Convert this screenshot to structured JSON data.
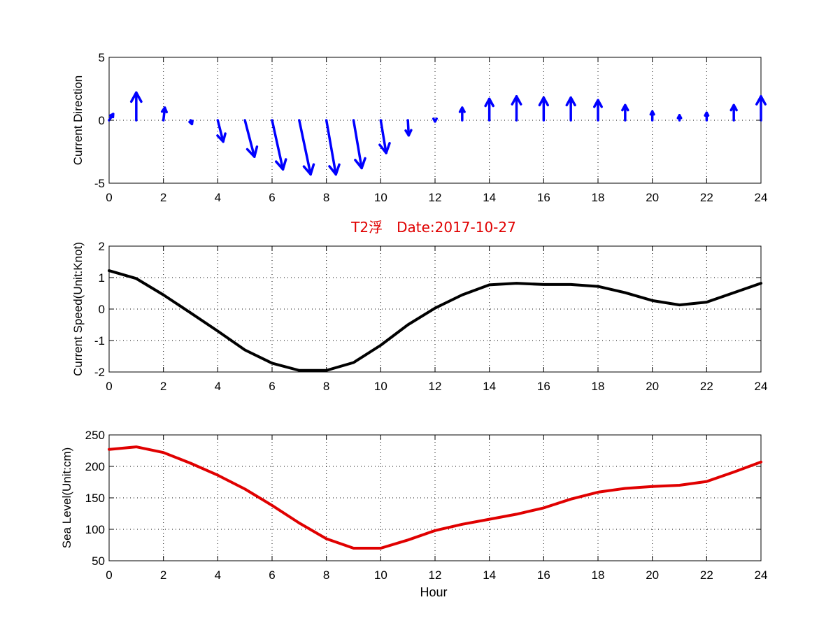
{
  "title": "T2浮　Date:2017-10-27",
  "title_color": "#e00000",
  "chart_data": [
    {
      "type": "quiver",
      "ylabel": "Current Direction",
      "xlabel": "",
      "xlim": [
        0,
        24
      ],
      "ylim": [
        -5,
        5
      ],
      "xticks": [
        "0",
        "2",
        "4",
        "6",
        "8",
        "10",
        "12",
        "14",
        "16",
        "18",
        "20",
        "22",
        "24"
      ],
      "yticks": [
        "5",
        "0",
        "-5"
      ],
      "grid": true,
      "color": "#0000ff",
      "x": [
        0,
        1,
        2,
        3,
        4,
        5,
        6,
        7,
        8,
        9,
        10,
        11,
        12,
        13,
        14,
        15,
        16,
        17,
        18,
        19,
        20,
        21,
        22,
        23,
        24
      ],
      "u": [
        0.15,
        0,
        0.05,
        0.05,
        0.2,
        0.35,
        0.4,
        0.42,
        0.35,
        0.3,
        0.2,
        0.03,
        0,
        0,
        0,
        0,
        0,
        0,
        0,
        0,
        0,
        0,
        0,
        0,
        0
      ],
      "v": [
        0.5,
        2.2,
        1.0,
        -0.3,
        -1.7,
        -2.9,
        -3.9,
        -4.3,
        -4.3,
        -3.8,
        -2.6,
        -1.2,
        -0.1,
        1.0,
        1.7,
        1.9,
        1.8,
        1.8,
        1.6,
        1.2,
        0.7,
        0.4,
        0.6,
        1.2,
        1.9
      ]
    },
    {
      "type": "line",
      "ylabel": "Current Speed(Unit:Knot)",
      "xlabel": "",
      "xlim": [
        0,
        24
      ],
      "ylim": [
        -2,
        2
      ],
      "xticks": [
        "0",
        "2",
        "4",
        "6",
        "8",
        "10",
        "12",
        "14",
        "16",
        "18",
        "20",
        "22",
        "24"
      ],
      "yticks": [
        "2",
        "1",
        "0",
        "-1",
        "-2"
      ],
      "grid": true,
      "color": "#000000",
      "x": [
        0,
        1,
        2,
        3,
        4,
        5,
        6,
        7,
        8,
        9,
        10,
        11,
        12,
        13,
        14,
        15,
        16,
        17,
        18,
        19,
        20,
        21,
        22,
        23,
        24
      ],
      "y": [
        1.22,
        0.97,
        0.45,
        -0.12,
        -0.7,
        -1.3,
        -1.72,
        -1.95,
        -1.95,
        -1.7,
        -1.15,
        -0.5,
        0.03,
        0.45,
        0.77,
        0.82,
        0.78,
        0.78,
        0.72,
        0.52,
        0.27,
        0.13,
        0.22,
        0.52,
        0.82
      ]
    },
    {
      "type": "line",
      "ylabel": "Sea Level(Unit:cm)",
      "xlabel": "Hour",
      "xlim": [
        0,
        24
      ],
      "ylim": [
        50,
        250
      ],
      "xticks": [
        "0",
        "2",
        "4",
        "6",
        "8",
        "10",
        "12",
        "14",
        "16",
        "18",
        "20",
        "22",
        "24"
      ],
      "yticks": [
        "250",
        "200",
        "150",
        "100",
        "50"
      ],
      "grid": true,
      "color": "#e00000",
      "x": [
        0,
        1,
        2,
        3,
        4,
        5,
        6,
        7,
        8,
        9,
        10,
        11,
        12,
        13,
        14,
        15,
        16,
        17,
        18,
        19,
        20,
        21,
        22,
        23,
        24
      ],
      "y": [
        227,
        231,
        222,
        205,
        186,
        164,
        138,
        110,
        85,
        70,
        70,
        83,
        98,
        108,
        116,
        124,
        134,
        148,
        159,
        165,
        168,
        170,
        176,
        191,
        207
      ]
    }
  ]
}
